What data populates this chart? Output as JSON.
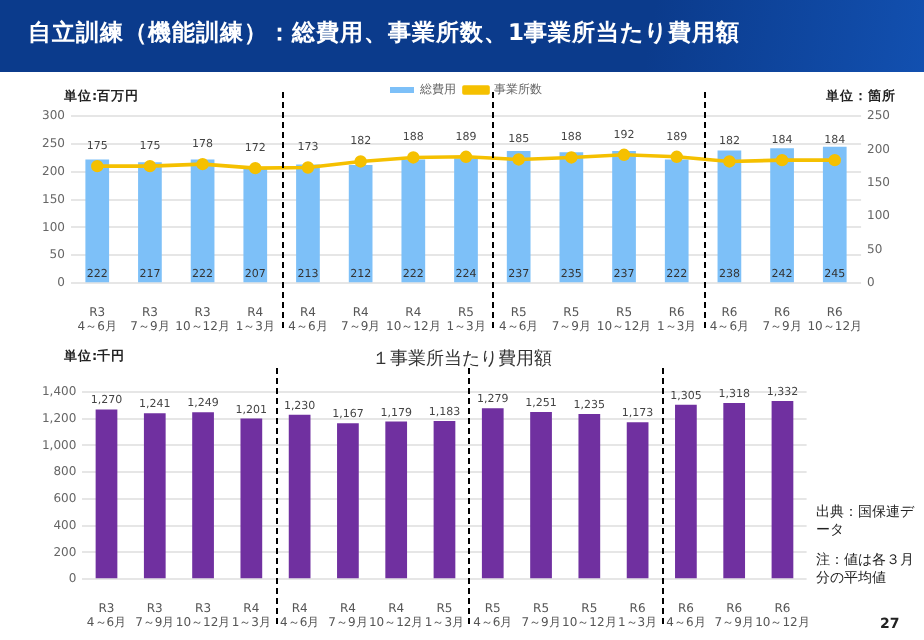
{
  "chart_data": [
    {
      "type": "bar",
      "title": "自立訓練（機能訓練）：総費用、事業所数、1事業所当たり費用額",
      "ylabel": "単位:百万円",
      "y2label": "単位：箇所",
      "categories": [
        "R3\n4～6月",
        "R3\n7～9月",
        "R3\n10～12月",
        "R4\n1～3月",
        "R4\n4～6月",
        "R4\n7～9月",
        "R4\n10～12月",
        "R5\n1～3月",
        "R5\n4～6月",
        "R5\n7～9月",
        "R5\n10～12月",
        "R6\n1～3月",
        "R6\n4～6月",
        "R6\n7～9月",
        "R6\n10～12月"
      ],
      "series": [
        {
          "name": "総費用",
          "type": "bar",
          "color": "#7dc0f8",
          "values": [
            222,
            217,
            222,
            207,
            213,
            212,
            222,
            224,
            237,
            235,
            237,
            222,
            238,
            242,
            245
          ]
        },
        {
          "name": "事業所数",
          "type": "line",
          "axis": "y2",
          "color": "#f5c000",
          "values": [
            175,
            175,
            178,
            172,
            173,
            182,
            188,
            189,
            185,
            188,
            192,
            189,
            182,
            184,
            184
          ]
        }
      ],
      "ylim": [
        0,
        300
      ],
      "yticks": [
        0,
        50,
        100,
        150,
        200,
        250,
        300
      ],
      "y2lim": [
        0,
        250
      ],
      "y2ticks": [
        0,
        50,
        100,
        150,
        200,
        250
      ],
      "grid": "y",
      "legend": "top",
      "marker": "circle",
      "data_labels": true
    },
    {
      "type": "bar",
      "title": "１事業所当たり費用額",
      "ylabel": "単位:千円",
      "categories": [
        "R3\n4～6月",
        "R3\n7～9月",
        "R3\n10～12月",
        "R4\n1～3月",
        "R4\n4～6月",
        "R4\n7～9月",
        "R4\n10～12月",
        "R5\n1～3月",
        "R5\n4～6月",
        "R5\n7～9月",
        "R5\n10～12月",
        "R6\n1～3月",
        "R6\n4～6月",
        "R6\n7～9月",
        "R6\n10～12月"
      ],
      "values": [
        1270,
        1241,
        1249,
        1201,
        1230,
        1167,
        1179,
        1183,
        1279,
        1251,
        1235,
        1173,
        1305,
        1318,
        1332
      ],
      "color": "#7030a0",
      "value_labels": [
        "1,270",
        "1,241",
        "1,249",
        "1,201",
        "1,230",
        "1,167",
        "1,179",
        "1,183",
        "1,279",
        "1,251",
        "1,235",
        "1,173",
        "1,305",
        "1,318",
        "1,332"
      ],
      "ylim": [
        0,
        1400
      ],
      "yticks": [
        0,
        200,
        400,
        600,
        800,
        {
          "value": 1000,
          "label": "1,000"
        },
        {
          "value": 1200,
          "label": "1,200"
        },
        {
          "value": 1400,
          "label": "1,400"
        }
      ],
      "grid": "y",
      "annotations": [
        "出典：国保連データ",
        "注：値は各３月分の平均値",
        "27"
      ]
    }
  ]
}
